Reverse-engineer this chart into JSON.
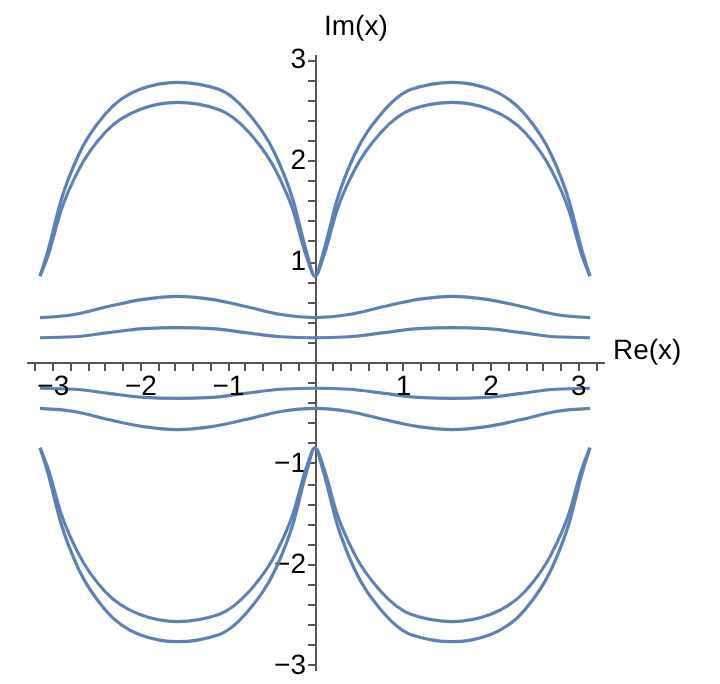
{
  "chart_data": {
    "type": "line",
    "xlabel": "Re(x)",
    "ylabel": "Im(x)",
    "grid": false,
    "legend": false,
    "marker": "none",
    "line_style": "solid",
    "xlim": [
      -3.3,
      3.3
    ],
    "ylim": [
      -3.05,
      3.05
    ],
    "xticks": [
      {
        "value": -3.2,
        "label": null
      },
      {
        "value": -3,
        "label": "−3"
      },
      {
        "value": -2.8,
        "label": null
      },
      {
        "value": -2.6,
        "label": null
      },
      {
        "value": -2.4,
        "label": null
      },
      {
        "value": -2.2,
        "label": null
      },
      {
        "value": -2,
        "label": "−2"
      },
      {
        "value": -1.8,
        "label": null
      },
      {
        "value": -1.6,
        "label": null
      },
      {
        "value": -1.4,
        "label": null
      },
      {
        "value": -1.2,
        "label": null
      },
      {
        "value": -1,
        "label": "−1"
      },
      {
        "value": -0.8,
        "label": null
      },
      {
        "value": -0.6,
        "label": null
      },
      {
        "value": -0.4,
        "label": null
      },
      {
        "value": -0.2,
        "label": null
      },
      {
        "value": 0.2,
        "label": null
      },
      {
        "value": 0.4,
        "label": null
      },
      {
        "value": 0.6,
        "label": null
      },
      {
        "value": 0.8,
        "label": null
      },
      1,
      {
        "value": 1.2,
        "label": null
      },
      {
        "value": 1.4,
        "label": null
      },
      {
        "value": 1.6,
        "label": null
      },
      {
        "value": 1.8,
        "label": null
      },
      2,
      {
        "value": 2.2,
        "label": null
      },
      {
        "value": 2.4,
        "label": null
      },
      {
        "value": 2.6,
        "label": null
      },
      {
        "value": 2.8,
        "label": null
      },
      3,
      {
        "value": 3.2,
        "label": null
      }
    ],
    "yticks": [
      {
        "value": -3,
        "label": "−3"
      },
      {
        "value": -2.8,
        "label": null
      },
      {
        "value": -2.6,
        "label": null
      },
      {
        "value": -2.4,
        "label": null
      },
      {
        "value": -2.2,
        "label": null
      },
      {
        "value": -2,
        "label": "−2"
      },
      {
        "value": -1.8,
        "label": null
      },
      {
        "value": -1.6,
        "label": null
      },
      {
        "value": -1.4,
        "label": null
      },
      {
        "value": -1.2,
        "label": null
      },
      {
        "value": -1,
        "label": "−1"
      },
      {
        "value": -0.8,
        "label": null
      },
      {
        "value": -0.6,
        "label": null
      },
      {
        "value": -0.4,
        "label": null
      },
      {
        "value": -0.2,
        "label": null
      },
      {
        "value": 0.2,
        "label": null
      },
      {
        "value": 0.4,
        "label": null
      },
      {
        "value": 0.6,
        "label": null
      },
      {
        "value": 0.8,
        "label": null
      },
      1,
      {
        "value": 1.2,
        "label": null
      },
      {
        "value": 1.4,
        "label": null
      },
      {
        "value": 1.6,
        "label": null
      },
      {
        "value": 1.8,
        "label": null
      },
      2,
      {
        "value": 2.2,
        "label": null
      },
      {
        "value": 2.4,
        "label": null
      },
      {
        "value": 2.6,
        "label": null
      },
      {
        "value": 2.8,
        "label": null
      },
      3
    ],
    "series": [
      {
        "color": "#5e81b5",
        "x": [
          -3.14,
          -3.05,
          -2.9,
          -2.7,
          -2.4,
          -2.0,
          -1.57,
          -1.1,
          -0.75,
          -0.45,
          -0.25,
          -0.1,
          0,
          0.1,
          0.25,
          0.45,
          0.75,
          1.1,
          1.57,
          2.0,
          2.4,
          2.7,
          2.9,
          3.05,
          3.14
        ],
        "values": [
          0.85,
          1.1,
          1.6,
          2.05,
          2.45,
          2.7,
          2.77,
          2.7,
          2.45,
          2.05,
          1.6,
          1.1,
          0.85,
          1.1,
          1.6,
          2.05,
          2.45,
          2.7,
          2.77,
          2.7,
          2.45,
          2.05,
          1.6,
          1.1,
          0.85
        ]
      },
      {
        "color": "#5e81b5",
        "x": [
          -3.14,
          -3.05,
          -2.9,
          -2.7,
          -2.4,
          -2.0,
          -1.57,
          -1.1,
          -0.75,
          -0.45,
          -0.25,
          -0.1,
          0,
          0.1,
          0.25,
          0.45,
          0.75,
          1.1,
          1.57,
          2.0,
          2.4,
          2.7,
          2.9,
          3.05,
          3.14
        ],
        "values": [
          0.85,
          1.05,
          1.5,
          1.9,
          2.27,
          2.5,
          2.57,
          2.5,
          2.27,
          1.9,
          1.5,
          1.05,
          0.85,
          1.05,
          1.5,
          1.9,
          2.27,
          2.5,
          2.57,
          2.5,
          2.27,
          1.9,
          1.5,
          1.05,
          0.85
        ]
      },
      {
        "color": "#5e81b5",
        "x": [
          -3.14,
          -2.75,
          -2.36,
          -1.96,
          -1.57,
          -1.18,
          -0.79,
          -0.39,
          0,
          0.39,
          0.79,
          1.18,
          1.57,
          1.96,
          2.36,
          2.75,
          3.14
        ],
        "values": [
          0.44,
          0.47,
          0.55,
          0.62,
          0.65,
          0.62,
          0.55,
          0.47,
          0.44,
          0.47,
          0.55,
          0.62,
          0.65,
          0.62,
          0.55,
          0.47,
          0.44
        ]
      },
      {
        "color": "#5e81b5",
        "x": [
          -3.14,
          -2.75,
          -2.36,
          -1.96,
          -1.57,
          -1.18,
          -0.79,
          -0.39,
          0,
          0.39,
          0.79,
          1.18,
          1.57,
          1.96,
          2.36,
          2.75,
          3.14
        ],
        "values": [
          0.24,
          0.25,
          0.29,
          0.33,
          0.34,
          0.33,
          0.29,
          0.25,
          0.24,
          0.25,
          0.29,
          0.33,
          0.34,
          0.33,
          0.29,
          0.25,
          0.24
        ]
      },
      {
        "color": "#5e81b5",
        "x": [
          -3.14,
          -2.75,
          -2.36,
          -1.96,
          -1.57,
          -1.18,
          -0.79,
          -0.39,
          0,
          0.39,
          0.79,
          1.18,
          1.57,
          1.96,
          2.36,
          2.75,
          3.14
        ],
        "values": [
          -0.26,
          -0.27,
          -0.31,
          -0.35,
          -0.36,
          -0.35,
          -0.31,
          -0.27,
          -0.26,
          -0.27,
          -0.31,
          -0.35,
          -0.36,
          -0.35,
          -0.31,
          -0.27,
          -0.26
        ]
      },
      {
        "color": "#5e81b5",
        "x": [
          -3.14,
          -2.75,
          -2.36,
          -1.96,
          -1.57,
          -1.18,
          -0.79,
          -0.39,
          0,
          0.39,
          0.79,
          1.18,
          1.57,
          1.96,
          2.36,
          2.75,
          3.14
        ],
        "values": [
          -0.46,
          -0.49,
          -0.57,
          -0.64,
          -0.67,
          -0.64,
          -0.57,
          -0.49,
          -0.46,
          -0.49,
          -0.57,
          -0.64,
          -0.67,
          -0.64,
          -0.57,
          -0.49,
          -0.46
        ]
      },
      {
        "color": "#5e81b5",
        "x": [
          -3.14,
          -3.05,
          -2.9,
          -2.7,
          -2.4,
          -2.0,
          -1.57,
          -1.1,
          -0.75,
          -0.45,
          -0.25,
          -0.1,
          0,
          0.1,
          0.25,
          0.45,
          0.75,
          1.1,
          1.57,
          2.0,
          2.4,
          2.7,
          2.9,
          3.05,
          3.14
        ],
        "values": [
          -0.85,
          -1.05,
          -1.5,
          -1.9,
          -2.27,
          -2.5,
          -2.57,
          -2.5,
          -2.27,
          -1.9,
          -1.5,
          -1.05,
          -0.85,
          -1.05,
          -1.5,
          -1.9,
          -2.27,
          -2.5,
          -2.57,
          -2.5,
          -2.27,
          -1.9,
          -1.5,
          -1.05,
          -0.85
        ]
      },
      {
        "color": "#5e81b5",
        "x": [
          -3.14,
          -3.05,
          -2.9,
          -2.7,
          -2.4,
          -2.0,
          -1.57,
          -1.1,
          -0.75,
          -0.45,
          -0.25,
          -0.1,
          0,
          0.1,
          0.25,
          0.45,
          0.75,
          1.1,
          1.57,
          2.0,
          2.4,
          2.7,
          2.9,
          3.05,
          3.14
        ],
        "values": [
          -0.85,
          -1.1,
          -1.6,
          -2.05,
          -2.45,
          -2.7,
          -2.77,
          -2.7,
          -2.45,
          -2.05,
          -1.6,
          -1.1,
          -0.85,
          -1.1,
          -1.6,
          -2.05,
          -2.45,
          -2.7,
          -2.77,
          -2.7,
          -2.45,
          -2.05,
          -1.6,
          -1.1,
          -0.85
        ]
      }
    ]
  }
}
